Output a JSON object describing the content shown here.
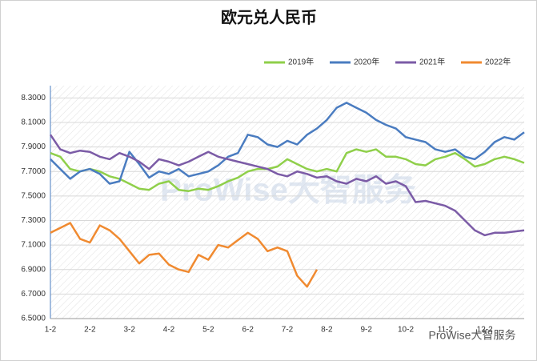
{
  "chart_data": {
    "type": "line",
    "title": "欧元兑人民币",
    "watermark": "ProWise大智服务",
    "footer": "ProWise大智服务",
    "categories": [
      "1-2",
      null,
      null,
      null,
      "2-2",
      null,
      null,
      null,
      "3-2",
      null,
      null,
      null,
      "4-2",
      null,
      null,
      null,
      "5-2",
      null,
      null,
      null,
      "6-2",
      null,
      null,
      null,
      "7-2",
      null,
      null,
      null,
      "8-2",
      null,
      null,
      null,
      "9-2",
      null,
      null,
      null,
      "10-2",
      null,
      null,
      null,
      "11-2",
      null,
      null,
      null,
      "12-2",
      null,
      null,
      null,
      null
    ],
    "series": [
      {
        "name": "2019年",
        "color": "#8fcf4a",
        "values": [
          7.85,
          7.82,
          7.72,
          7.7,
          7.72,
          7.7,
          7.66,
          7.64,
          7.6,
          7.56,
          7.55,
          7.6,
          7.62,
          7.55,
          7.54,
          7.56,
          7.55,
          7.58,
          7.62,
          7.65,
          7.7,
          7.72,
          7.72,
          7.74,
          7.8,
          7.76,
          7.72,
          7.7,
          7.72,
          7.7,
          7.85,
          7.88,
          7.86,
          7.88,
          7.82,
          7.82,
          7.8,
          7.76,
          7.75,
          7.8,
          7.82,
          7.85,
          7.8,
          7.74,
          7.76,
          7.8,
          7.82,
          7.8,
          7.77
        ]
      },
      {
        "name": "2020年",
        "color": "#4a7cc0",
        "values": [
          7.8,
          7.72,
          7.64,
          7.7,
          7.72,
          7.68,
          7.6,
          7.62,
          7.86,
          7.76,
          7.65,
          7.7,
          7.68,
          7.72,
          7.66,
          7.68,
          7.7,
          7.75,
          7.82,
          7.85,
          8.0,
          7.98,
          7.92,
          7.9,
          7.95,
          7.92,
          8.0,
          8.05,
          8.12,
          8.22,
          8.26,
          8.22,
          8.18,
          8.12,
          8.08,
          8.05,
          7.98,
          7.96,
          7.94,
          7.88,
          7.86,
          7.88,
          7.82,
          7.8,
          7.86,
          7.94,
          7.98,
          7.96,
          8.02
        ]
      },
      {
        "name": "2021年",
        "color": "#7b5ba6",
        "values": [
          8.0,
          7.88,
          7.85,
          7.87,
          7.86,
          7.82,
          7.8,
          7.85,
          7.82,
          7.78,
          7.72,
          7.8,
          7.78,
          7.75,
          7.78,
          7.82,
          7.86,
          7.82,
          7.8,
          7.78,
          7.76,
          7.74,
          7.72,
          7.68,
          7.66,
          7.7,
          7.68,
          7.65,
          7.66,
          7.62,
          7.6,
          7.64,
          7.62,
          7.66,
          7.6,
          7.62,
          7.58,
          7.45,
          7.46,
          7.44,
          7.42,
          7.38,
          7.3,
          7.22,
          7.18,
          7.2,
          7.2,
          7.21,
          7.22
        ]
      },
      {
        "name": "2022年",
        "color": "#f08a30",
        "values": [
          7.2,
          7.24,
          7.28,
          7.15,
          7.12,
          7.26,
          7.22,
          7.15,
          7.05,
          6.95,
          7.02,
          7.03,
          6.94,
          6.9,
          6.88,
          7.02,
          6.98,
          7.1,
          7.08,
          7.14,
          7.2,
          7.15,
          7.05,
          7.08,
          7.05,
          6.85,
          6.76,
          6.9,
          null,
          null,
          null,
          null,
          null,
          null,
          null,
          null,
          null,
          null,
          null,
          null,
          null,
          null,
          null,
          null,
          null,
          null,
          null,
          null,
          null
        ]
      }
    ],
    "ylim": [
      6.5,
      8.4
    ],
    "yticks": [
      {
        "value": 6.5,
        "label": "6.5000"
      },
      {
        "value": 6.7,
        "label": "6.7000"
      },
      {
        "value": 6.9,
        "label": "6.9000"
      },
      {
        "value": 7.1,
        "label": "7.1000"
      },
      {
        "value": 7.3,
        "label": "7.3000"
      },
      {
        "value": 7.5,
        "label": "7.5000"
      },
      {
        "value": 7.7,
        "label": "7.7000"
      },
      {
        "value": 7.9,
        "label": "7.9000"
      },
      {
        "value": 8.1,
        "label": "8.1000"
      },
      {
        "value": 8.3,
        "label": "8.3000"
      }
    ],
    "grid": true,
    "legend": "top-right"
  }
}
